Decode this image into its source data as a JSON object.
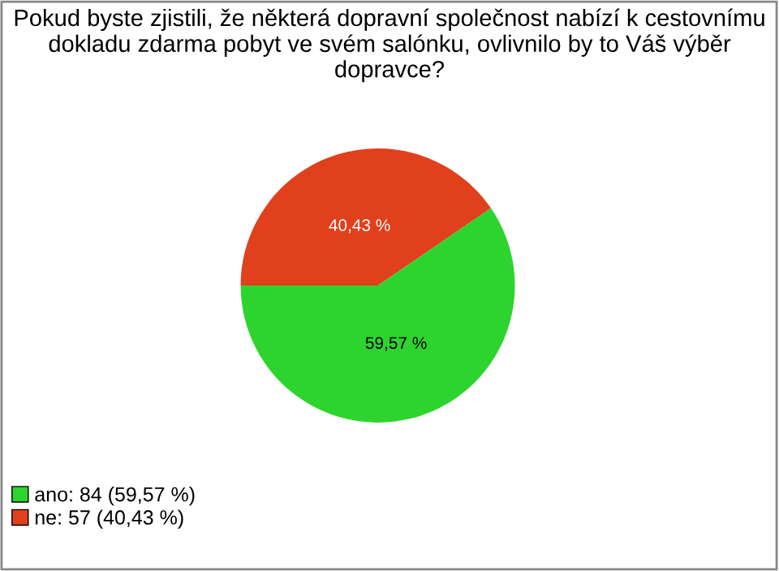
{
  "chart_data": {
    "type": "pie",
    "title": "Pokud byste zjistili, že některá dopravní společnost nabízí k cestovnímu dokladu zdarma pobyt ve svém salónku, ovlivnilo by to Váš výběr dopravce?",
    "categories": [
      "ano: 84 (59,57 %)",
      "ne: 57 (40,43 %)"
    ],
    "values": [
      59.57,
      40.43
    ],
    "colors": [
      "#2ed42e",
      "#e0401c"
    ],
    "value_labels": [
      "59,57 %",
      "40,43 %"
    ],
    "legend": "bottom left"
  }
}
